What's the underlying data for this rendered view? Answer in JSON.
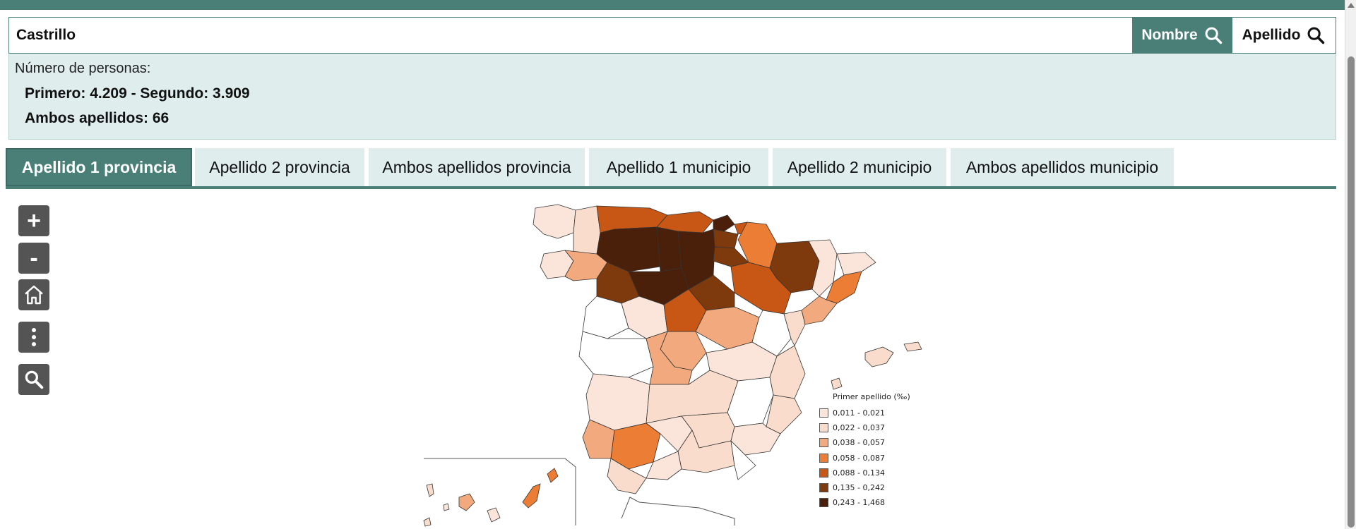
{
  "search": {
    "value": "Castrillo"
  },
  "buttons": {
    "nombre": "Nombre",
    "apellido": "Apellido"
  },
  "info": {
    "label": "Número de personas:",
    "line1": "Primero: 4.209 - Segundo: 3.909",
    "line2": "Ambos apellidos: 66"
  },
  "tabs": [
    {
      "label": "Apellido 1 provincia",
      "active": true
    },
    {
      "label": "Apellido 2 provincia",
      "active": false
    },
    {
      "label": "Ambos apellidos provincia",
      "active": false
    },
    {
      "label": "Apellido 1 municipio",
      "active": false
    },
    {
      "label": "Apellido 2 municipio",
      "active": false
    },
    {
      "label": "Ambos apellidos municipio",
      "active": false
    }
  ],
  "map_controls": [
    "zoom-in",
    "zoom-out",
    "home",
    "more-options",
    "search"
  ],
  "map_control_symbols": {
    "zoom_in": "+",
    "zoom_out": "-"
  },
  "legend": {
    "title": "Primer apellido (‰)",
    "items": [
      {
        "label": "0,011 - 0,021",
        "color": "#fbe5da"
      },
      {
        "label": "0,022 - 0,037",
        "color": "#f9dccb"
      },
      {
        "label": "0,038 - 0,057",
        "color": "#f1a97d"
      },
      {
        "label": "0,058 - 0,087",
        "color": "#ec7d34"
      },
      {
        "label": "0,088 - 0,134",
        "color": "#c85716"
      },
      {
        "label": "0,135 - 0,242",
        "color": "#7e3a0d"
      },
      {
        "label": "0,243 - 1,468",
        "color": "#4a200a"
      }
    ]
  },
  "colors": {
    "accent": "#4a7f78",
    "panel": "#dfeeed"
  }
}
